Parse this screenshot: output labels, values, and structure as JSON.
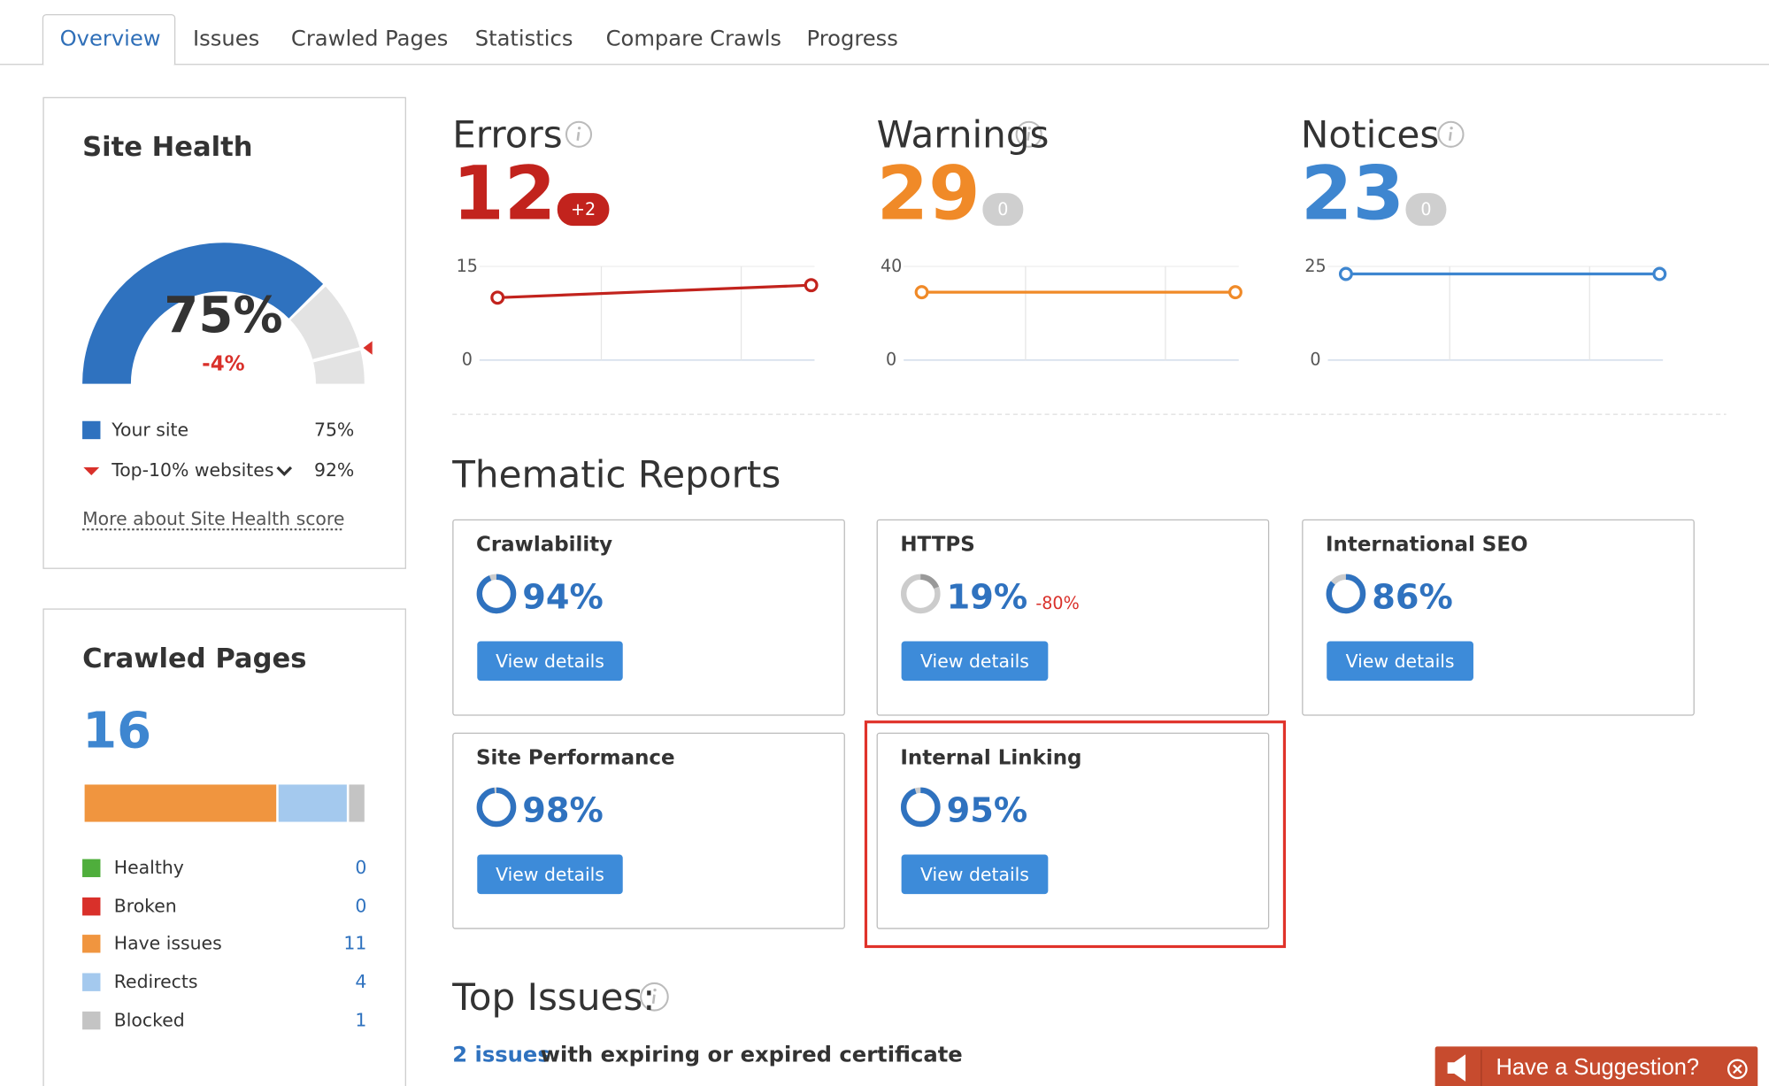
{
  "tabs": [
    "Overview",
    "Issues",
    "Crawled Pages",
    "Statistics",
    "Compare Crawls",
    "Progress"
  ],
  "site_health": {
    "title": "Site Health",
    "score": "75%",
    "change": "-4%",
    "legend": [
      {
        "label": "Your site",
        "value": "75%"
      },
      {
        "label": "Top-10% websites",
        "value": "92%"
      }
    ],
    "link": "More about Site Health score"
  },
  "crawled_pages": {
    "title": "Crawled Pages",
    "total": "16",
    "rows": [
      {
        "label": "Healthy",
        "count": 0
      },
      {
        "label": "Broken",
        "count": 0
      },
      {
        "label": "Have issues",
        "count": 11
      },
      {
        "label": "Redirects",
        "count": 4
      },
      {
        "label": "Blocked",
        "count": 1
      }
    ]
  },
  "summary": [
    {
      "label": "Errors",
      "count": 12,
      "delta": "+2",
      "ylim": [
        0,
        15
      ],
      "yticks": [
        0,
        15
      ],
      "trend": [
        10,
        12
      ]
    },
    {
      "label": "Warnings",
      "count": 29,
      "delta": "0",
      "ylim": [
        0,
        40
      ],
      "yticks": [
        0,
        40
      ],
      "trend": [
        29,
        29
      ]
    },
    {
      "label": "Notices",
      "count": 23,
      "delta": "0",
      "ylim": [
        0,
        25
      ],
      "yticks": [
        0,
        25
      ],
      "trend": [
        23,
        23
      ]
    }
  ],
  "thematic": {
    "title": "Thematic Reports",
    "cards": [
      {
        "name": "Crawlability",
        "score": "94%",
        "button": "View details"
      },
      {
        "name": "HTTPS",
        "score": "19%",
        "delta": "-80%",
        "button": "View details"
      },
      {
        "name": "International SEO",
        "score": "86%",
        "button": "View details"
      },
      {
        "name": "Site Performance",
        "score": "98%",
        "button": "View details"
      },
      {
        "name": "Internal Linking",
        "score": "95%",
        "button": "View details"
      }
    ]
  },
  "top_issues": {
    "title": "Top Issues:",
    "items": [
      {
        "link": "2 issues",
        "text": "with expiring or expired certificate"
      }
    ]
  },
  "suggestion": "Have a Suggestion?"
}
